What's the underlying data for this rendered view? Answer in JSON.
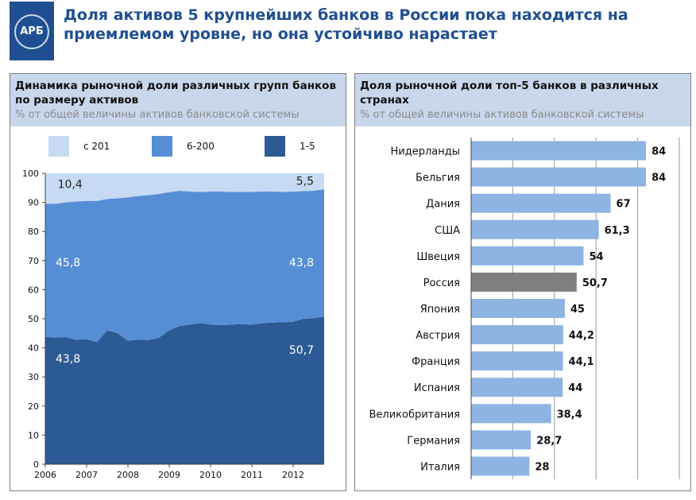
{
  "logo": {
    "text": "АРБ"
  },
  "headline": "Доля активов 5 крупнейших банков в России пока находится на приемлемом уровне, но она устойчиво нарастает",
  "left_panel": {
    "title": "Динамика рыночной доли различных групп банков по размеру активов",
    "subtitle": "% от общей величины активов банковской системы",
    "legend": [
      {
        "label": "с 201",
        "color": "#c6daf3"
      },
      {
        "label": "6-200",
        "color": "#558ed5"
      },
      {
        "label": "1-5",
        "color": "#2c5a94"
      }
    ]
  },
  "right_panel": {
    "title": "Доля рыночной доли топ-5 банков в различных странах",
    "subtitle": "% от общей величины активов банковской системы"
  },
  "chart_data": [
    {
      "type": "area",
      "stacked": true,
      "x": [
        2006.0,
        2006.25,
        2006.5,
        2006.75,
        2007.0,
        2007.25,
        2007.5,
        2007.75,
        2008.0,
        2008.25,
        2008.5,
        2008.75,
        2009.0,
        2009.25,
        2009.5,
        2009.75,
        2010.0,
        2010.25,
        2010.5,
        2010.75,
        2011.0,
        2011.25,
        2011.5,
        2011.75,
        2012.0,
        2012.25,
        2012.5,
        2012.75
      ],
      "series": [
        {
          "name": "1-5",
          "color": "#2c5a94",
          "values": [
            43.8,
            43.5,
            43.7,
            42.8,
            43.0,
            42.0,
            46.0,
            45.0,
            42.5,
            42.8,
            42.7,
            43.5,
            46.0,
            47.5,
            48.0,
            48.5,
            48.0,
            47.8,
            48.0,
            48.2,
            48.0,
            48.5,
            48.7,
            48.8,
            49.0,
            50.0,
            50.2,
            50.7
          ]
        },
        {
          "name": "6-200",
          "color": "#558ed5",
          "values": [
            45.8,
            46.0,
            46.3,
            47.5,
            47.5,
            48.5,
            45.2,
            46.4,
            49.2,
            49.4,
            49.8,
            49.4,
            47.5,
            46.5,
            45.7,
            45.1,
            45.7,
            45.9,
            45.6,
            45.4,
            45.6,
            45.2,
            45.0,
            44.8,
            44.7,
            43.9,
            43.8,
            43.8
          ]
        },
        {
          "name": "с 201",
          "color": "#c6daf3",
          "values": [
            10.4,
            10.5,
            10.0,
            9.7,
            9.5,
            9.5,
            8.8,
            8.6,
            8.3,
            7.8,
            7.5,
            7.1,
            6.5,
            6.0,
            6.3,
            6.4,
            6.3,
            6.3,
            6.4,
            6.4,
            6.4,
            6.3,
            6.3,
            6.4,
            6.3,
            6.1,
            6.0,
            5.5
          ]
        }
      ],
      "ylim": [
        0,
        100
      ],
      "yticks": [
        "0",
        "10",
        "20",
        "30",
        "40",
        "50",
        "60",
        "70",
        "80",
        "90",
        "100"
      ],
      "xticks": [
        "2006",
        "2007",
        "2008",
        "2009",
        "2010",
        "2011",
        "2012"
      ],
      "annotations": [
        "10,4",
        "5,5",
        "45,8",
        "43,8",
        "43,8",
        "50,7"
      ],
      "legend_position": "top"
    },
    {
      "type": "bar",
      "orientation": "horizontal",
      "categories": [
        "Нидерланды",
        "Бельгия",
        "Дания",
        "США",
        "Швеция",
        "Россия",
        "Япония",
        "Австрия",
        "Франция",
        "Испания",
        "Великобритания",
        "Германия",
        "Италия"
      ],
      "values": [
        84,
        84,
        67,
        61.3,
        54,
        50.7,
        45,
        44.2,
        44.1,
        44,
        38.4,
        28.7,
        28
      ],
      "value_labels": [
        "84",
        "84",
        "67",
        "61,3",
        "54",
        "50,7",
        "45",
        "44,2",
        "44,1",
        "44",
        "38,4",
        "28,7",
        "28"
      ],
      "bar_color": "#8db4e2",
      "highlight_color": "#7f7f7f",
      "highlight": "Россия",
      "xlim": [
        0,
        100
      ],
      "grid": true
    }
  ]
}
